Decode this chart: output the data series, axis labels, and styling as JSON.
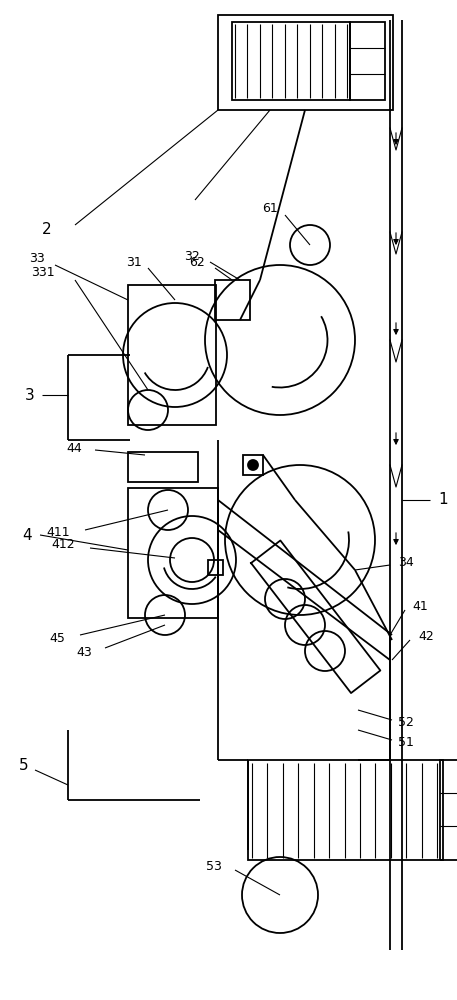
{
  "bg": "#ffffff",
  "lc": "#000000",
  "lw": 1.3,
  "lw_t": 0.8,
  "fs": 10,
  "fss": 9
}
